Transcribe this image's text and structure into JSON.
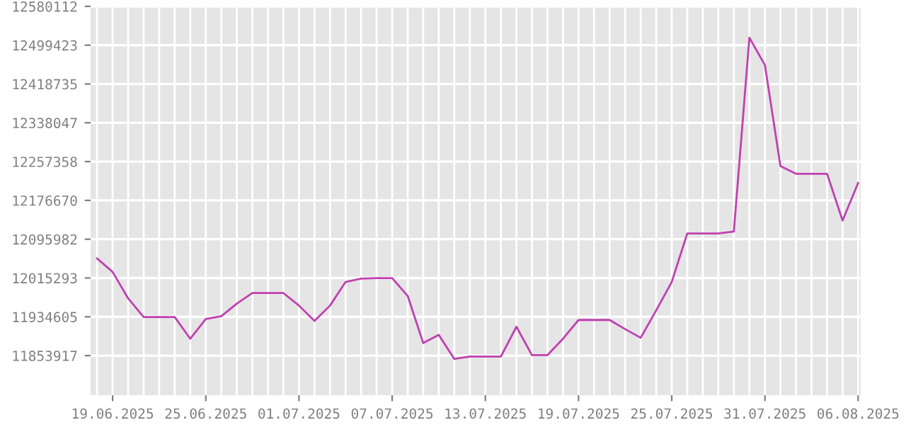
{
  "chart_data": {
    "type": "line",
    "x": [
      "2025-06-18",
      "2025-06-19",
      "2025-06-20",
      "2025-06-21",
      "2025-06-22",
      "2025-06-23",
      "2025-06-24",
      "2025-06-25",
      "2025-06-26",
      "2025-06-27",
      "2025-06-28",
      "2025-06-29",
      "2025-06-30",
      "2025-07-01",
      "2025-07-02",
      "2025-07-03",
      "2025-07-04",
      "2025-07-05",
      "2025-07-06",
      "2025-07-07",
      "2025-07-08",
      "2025-07-09",
      "2025-07-10",
      "2025-07-11",
      "2025-07-12",
      "2025-07-13",
      "2025-07-14",
      "2025-07-15",
      "2025-07-16",
      "2025-07-17",
      "2025-07-18",
      "2025-07-19",
      "2025-07-20",
      "2025-07-21",
      "2025-07-22",
      "2025-07-23",
      "2025-07-24",
      "2025-07-25",
      "2025-07-26",
      "2025-07-27",
      "2025-07-28",
      "2025-07-29",
      "2025-07-30",
      "2025-07-31",
      "2025-08-01",
      "2025-08-02",
      "2025-08-03",
      "2025-08-04",
      "2025-08-05",
      "2025-08-06"
    ],
    "series": [
      {
        "color": "#c040b0",
        "values": [
          12056000,
          12028000,
          11973000,
          11934000,
          11934000,
          11934000,
          11889000,
          11930000,
          11936000,
          11962000,
          11984000,
          11984000,
          11984000,
          11958000,
          11926000,
          11958000,
          12007000,
          12014000,
          12015000,
          12015000,
          11978000,
          11880000,
          11897000,
          11847000,
          11852000,
          11852000,
          11852000,
          11914000,
          11855000,
          11855000,
          11889000,
          11928000,
          11928000,
          11928000,
          11909000,
          11891000,
          11948000,
          12007000,
          12108000,
          12108000,
          12108000,
          12112000,
          12515000,
          12458000,
          12248000,
          12232000,
          12232000,
          12232000,
          12135000,
          12213000
        ]
      }
    ],
    "xlim": [
      "2025-06-17T14:00",
      "2025-08-06T04:00"
    ],
    "xticks": [
      {
        "value": "2025-06-19",
        "label": "19.06.2025"
      },
      {
        "value": "2025-06-25",
        "label": "25.06.2025"
      },
      {
        "value": "2025-07-01",
        "label": "01.07.2025"
      },
      {
        "value": "2025-07-07",
        "label": "07.07.2025"
      },
      {
        "value": "2025-07-13",
        "label": "13.07.2025"
      },
      {
        "value": "2025-07-19",
        "label": "19.07.2025"
      },
      {
        "value": "2025-07-25",
        "label": "25.07.2025"
      },
      {
        "value": "2025-07-31",
        "label": "31.07.2025"
      },
      {
        "value": "2025-08-06",
        "label": "06.08.2025"
      }
    ],
    "ylim": [
      11771500,
      12580112
    ],
    "yticks": [
      11853917,
      11934605,
      12015293,
      12095982,
      12176670,
      12257358,
      12338047,
      12418735,
      12499423,
      12580112
    ],
    "grid": true,
    "marker": "none",
    "line_style": "solid"
  }
}
